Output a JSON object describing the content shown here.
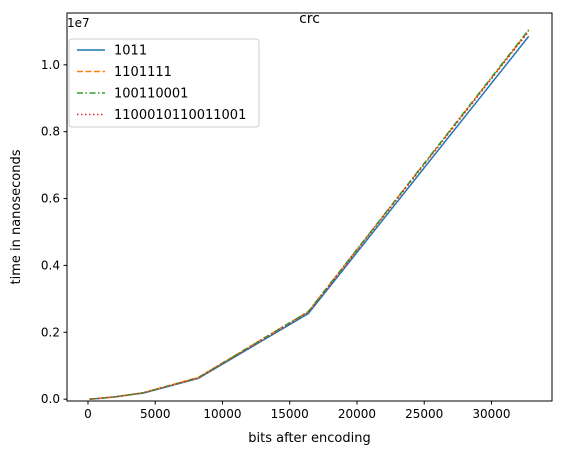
{
  "chart_data": {
    "type": "line",
    "title": "crc",
    "xlabel": "bits after encoding",
    "ylabel": "time in nanoseconds",
    "y_scale_label": "1e7",
    "xlim": [
      -1560,
      34500
    ],
    "ylim": [
      -0.055,
      11.55
    ],
    "y_unit_multiplier": 10000000,
    "xticks": [
      0,
      5000,
      10000,
      15000,
      20000,
      25000,
      30000
    ],
    "xtick_labels": [
      "0",
      "5000",
      "10000",
      "15000",
      "20000",
      "25000",
      "30000"
    ],
    "yticks": [
      0.0,
      0.2,
      0.4,
      0.6,
      0.8,
      1.0
    ],
    "ytick_labels": [
      "0.0",
      "0.2",
      "0.4",
      "0.6",
      "0.8",
      "1.0"
    ],
    "ytick_values": [
      0,
      2,
      4,
      6,
      8,
      10
    ],
    "legend_position": "upper-left",
    "grid": false,
    "series": [
      {
        "name": "1011",
        "color": "#1f77b4",
        "dash": "solid",
        "x": [
          128,
          256,
          512,
          1024,
          2048,
          4096,
          8192,
          16384,
          32768
        ],
        "y": [
          0.003,
          0.006,
          0.013,
          0.03,
          0.07,
          0.18,
          0.62,
          2.56,
          10.85
        ]
      },
      {
        "name": "1101111",
        "color": "#ff7f0e",
        "dash": "dashed",
        "x": [
          128,
          256,
          512,
          1024,
          2048,
          4096,
          8192,
          16384,
          32768
        ],
        "y": [
          0.003,
          0.006,
          0.013,
          0.031,
          0.072,
          0.19,
          0.65,
          2.62,
          11.03
        ]
      },
      {
        "name": "100110001",
        "color": "#2ca02c",
        "dash": "dashdot",
        "x": [
          128,
          256,
          512,
          1024,
          2048,
          4096,
          8192,
          16384,
          32768
        ],
        "y": [
          0.003,
          0.006,
          0.013,
          0.031,
          0.073,
          0.19,
          0.64,
          2.62,
          11.05
        ]
      },
      {
        "name": "1100010110011001",
        "color": "#d62728",
        "dash": "dotted",
        "x": [
          128,
          256,
          512,
          1024,
          2048,
          4096,
          8192,
          16384,
          32768
        ],
        "y": [
          0.003,
          0.006,
          0.013,
          0.031,
          0.072,
          0.19,
          0.63,
          2.6,
          11.0
        ]
      }
    ]
  }
}
